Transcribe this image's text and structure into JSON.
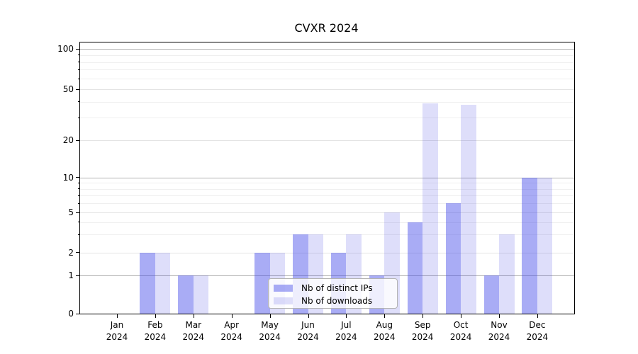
{
  "chart_data": {
    "type": "bar",
    "title": "CVXR 2024",
    "categories": [
      "Jan 2024",
      "Feb 2024",
      "Mar 2024",
      "Apr 2024",
      "May 2024",
      "Jun 2024",
      "Jul 2024",
      "Aug 2024",
      "Sep 2024",
      "Oct 2024",
      "Nov 2024",
      "Dec 2024"
    ],
    "series": [
      {
        "name": "Nb of distinct IPs",
        "color": "rgba(64,70,232,0.45)",
        "values": [
          0,
          2,
          1,
          0,
          2,
          3,
          2,
          1,
          4,
          6,
          1,
          10
        ]
      },
      {
        "name": "Nb of downloads",
        "color": "rgba(36,36,222,0.15)",
        "values": [
          0,
          2,
          1,
          0,
          2,
          3,
          3,
          5,
          39,
          38,
          3,
          10
        ]
      }
    ],
    "xlabel": "",
    "ylabel": "",
    "y_axis": {
      "scale": "symlog",
      "ticks": [
        0,
        1,
        2,
        5,
        10,
        20,
        50,
        100
      ],
      "minor_ticks": [
        3,
        4,
        6,
        7,
        8,
        9,
        30,
        40,
        60,
        70,
        80,
        90
      ],
      "emphasized_gridlines": [
        1,
        10,
        100
      ],
      "ylim": [
        0,
        110
      ]
    },
    "grid": true,
    "legend_position": "lower center"
  },
  "colors": {
    "background": "#ffffff",
    "axis": "#000000",
    "grid_emphasis": "#b2b2b2",
    "grid_regular": "#e4e4e4",
    "grid_minor": "#efefef",
    "legend_border": "#b3b3b3"
  }
}
